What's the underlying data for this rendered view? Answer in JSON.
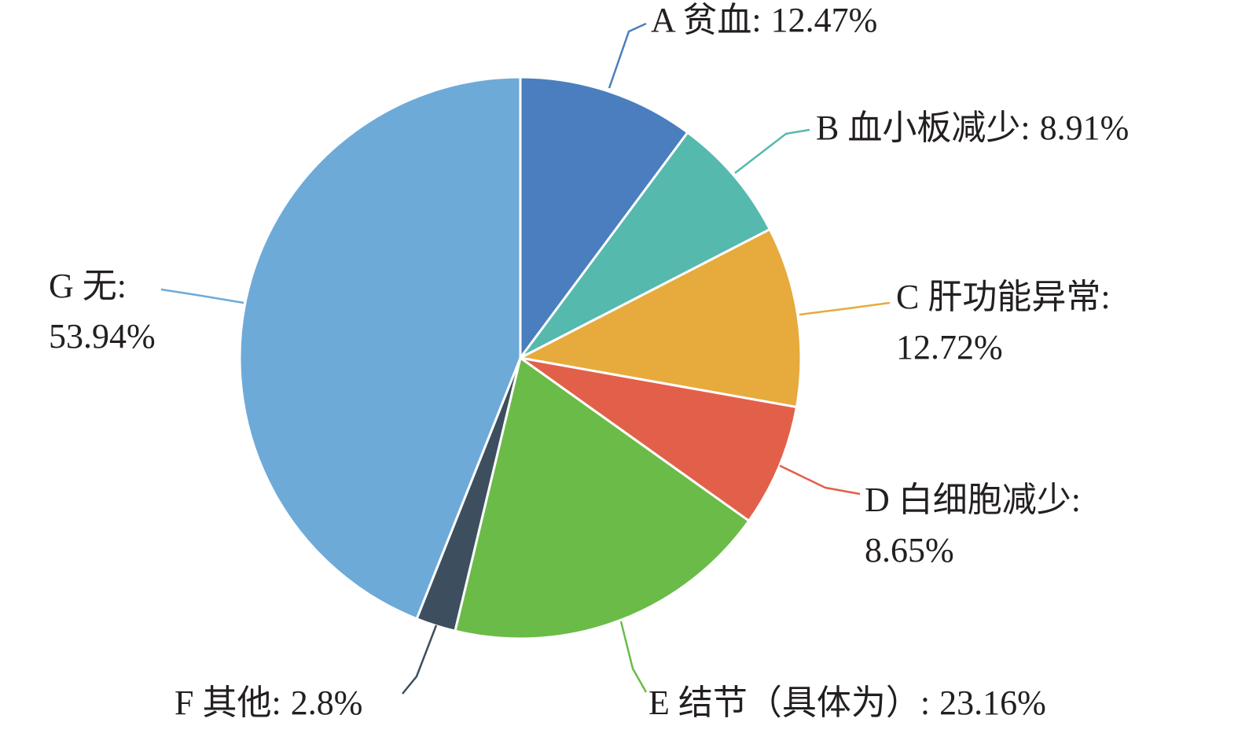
{
  "chart_data": {
    "type": "pie",
    "categories": [
      "A 贫血:",
      "B 血小板减少:",
      "C 肝功能异常:",
      "D 白细胞减少:",
      "E 结节（具体为）:",
      "F 其他:",
      "G 无:"
    ],
    "values": [
      12.47,
      8.91,
      12.72,
      8.65,
      23.16,
      2.8,
      53.94
    ],
    "value_labels": [
      "12.47%",
      "8.91%",
      "12.72%",
      "8.65%",
      "23.16%",
      "2.8%",
      "53.94%"
    ],
    "colors": [
      "#4a7ebf",
      "#55b9ad",
      "#e6ab3c",
      "#e2604a",
      "#6bbb48",
      "#3d4f5f",
      "#6eaad8"
    ]
  }
}
